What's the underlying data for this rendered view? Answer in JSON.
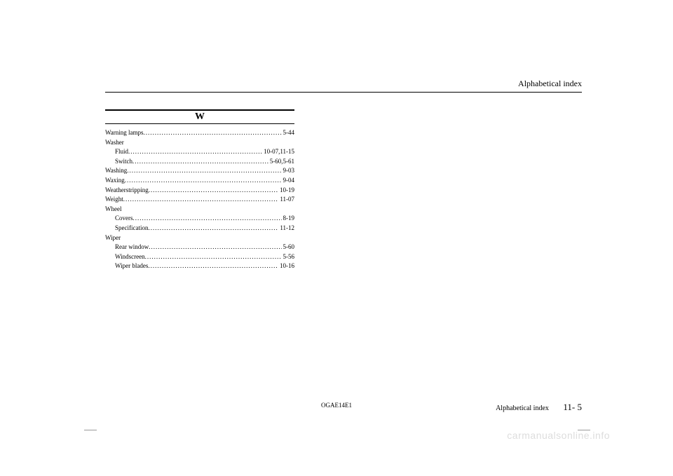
{
  "header": {
    "title": "Alphabetical index"
  },
  "section": {
    "letter": "W"
  },
  "entries": [
    {
      "type": "line",
      "label": "Warning lamps",
      "page": "5-44",
      "indent": false
    },
    {
      "type": "group",
      "label": "Washer"
    },
    {
      "type": "line",
      "label": "Fluid",
      "page": "10-07,11-15",
      "indent": true
    },
    {
      "type": "line",
      "label": "Switch",
      "page": "5-60,5-61",
      "indent": true
    },
    {
      "type": "line",
      "label": "Washing",
      "page": "9-03",
      "indent": false
    },
    {
      "type": "line",
      "label": "Waxing",
      "page": "9-04",
      "indent": false
    },
    {
      "type": "line",
      "label": "Weatherstripping",
      "page": "10-19",
      "indent": false
    },
    {
      "type": "line",
      "label": "Weight",
      "page": "11-07",
      "indent": false
    },
    {
      "type": "group",
      "label": "Wheel"
    },
    {
      "type": "line",
      "label": "Covers",
      "page": "8-19",
      "indent": true
    },
    {
      "type": "line",
      "label": "Specification",
      "page": "11-12",
      "indent": true
    },
    {
      "type": "group",
      "label": "Wiper"
    },
    {
      "type": "line",
      "label": "Rear window",
      "page": "5-60",
      "indent": true
    },
    {
      "type": "line",
      "label": "Windscreen",
      "page": "5-56",
      "indent": true
    },
    {
      "type": "line",
      "label": "Wiper blades",
      "page": "10-16",
      "indent": true
    }
  ],
  "footer": {
    "doc_code": "OGAE14E1",
    "section_name": "Alphabetical index",
    "page_number": "11- 5"
  },
  "watermark": "carmanualsonline.info"
}
